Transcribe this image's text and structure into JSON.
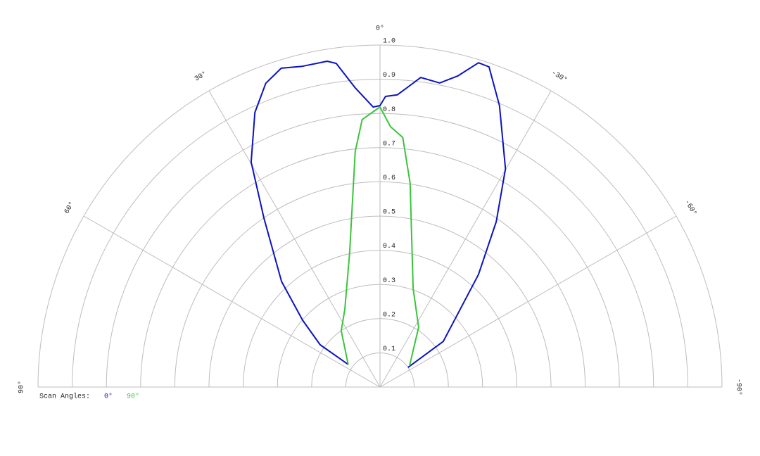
{
  "chart_data": {
    "type": "polar",
    "rlim": [
      0,
      1
    ],
    "rticks": [
      0.1,
      0.2,
      0.3,
      0.4,
      0.5,
      0.6,
      0.7,
      0.8,
      0.9,
      {
        "value": 1,
        "label": "1.0"
      }
    ],
    "thetaticks": [
      {
        "value": 90,
        "label": "90°"
      },
      {
        "value": 60,
        "label": "60°"
      },
      {
        "value": 30,
        "label": "30°"
      },
      {
        "value": 0,
        "label": "0°"
      },
      {
        "value": -30,
        "label": "-30°"
      },
      {
        "value": -60,
        "label": "-60°"
      },
      {
        "value": -90,
        "label": "-90°"
      }
    ],
    "legend_title": "Scan Angles:",
    "series": [
      {
        "name": "0°",
        "color": "#0a14c0",
        "angles": [
          54.6,
          54.8,
          49.2,
          43,
          34.5,
          29.8,
          24.5,
          20.6,
          17.2,
          13.6,
          9.2,
          7.7,
          4.7,
          1.4,
          0,
          -1.1,
          -3.4,
          -5.1,
          -7.5,
          -11.1,
          -14,
          -16.9,
          -18.8,
          -23,
          -29.9,
          -35.1,
          -41.2,
          -54.2,
          -55
        ],
        "values": [
          0.114,
          0.214,
          0.299,
          0.422,
          0.599,
          0.758,
          0.882,
          0.949,
          0.976,
          0.965,
          0.965,
          0.955,
          0.877,
          0.819,
          0.823,
          0.85,
          0.856,
          0.878,
          0.913,
          0.906,
          0.937,
          0.991,
          0.989,
          0.894,
          0.736,
          0.591,
          0.437,
          0.228,
          0.1
        ]
      },
      {
        "name": "90°",
        "color": "#3cc43c",
        "angles": [
          54.6,
          34.5,
          24.4,
          12.8,
          6,
          3.8,
          0,
          -2.3,
          -5.2,
          -8.4,
          -18.6,
          -32.9,
          -54.5
        ],
        "values": [
          0.114,
          0.2,
          0.249,
          0.401,
          0.693,
          0.784,
          0.819,
          0.762,
          0.733,
          0.603,
          0.304,
          0.208,
          0.106
        ]
      }
    ]
  }
}
